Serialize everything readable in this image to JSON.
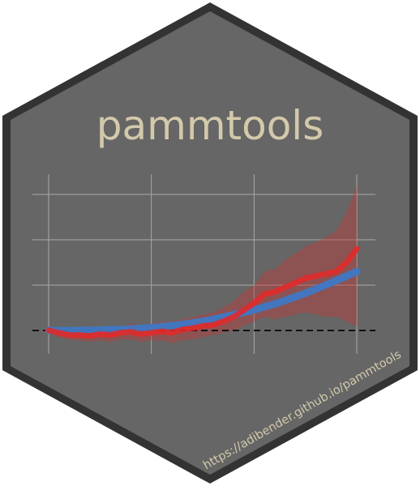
{
  "title": "pammtools",
  "url": "https://adibender.github.io/pammtools",
  "colors": {
    "page_background": "#ffffff",
    "hex_border": "#333333",
    "hex_fill": "#666666",
    "title": "#d3c9ab",
    "url": "#d3c9ab",
    "grid": "#a9a9a9",
    "reference_line": "#111111",
    "ribbon_red": "#cc3333",
    "line_red": "#e02a2a",
    "line_blue": "#3f78c4"
  },
  "chart_data": {
    "type": "line",
    "title": "",
    "xlabel": "",
    "ylabel": "",
    "xlim": [
      0,
      3
    ],
    "ylim": [
      -0.5,
      3
    ],
    "grid": true,
    "reference_line": {
      "y": 0,
      "style": "dashed"
    },
    "series": [
      {
        "x": [
          0,
          0.1,
          0.2,
          0.3,
          0.4,
          0.5,
          0.6,
          0.7,
          0.8,
          0.9,
          1.0,
          1.1,
          1.2,
          1.3,
          1.4,
          1.5,
          1.6,
          1.7,
          1.8,
          1.9,
          2.0,
          2.1,
          2.2,
          2.3,
          2.4,
          2.5,
          2.6,
          2.7,
          2.8,
          2.9,
          3.0
        ],
        "values": [
          0,
          -0.05,
          -0.1,
          -0.1,
          -0.12,
          -0.08,
          -0.1,
          -0.05,
          -0.03,
          -0.08,
          -0.05,
          -0.02,
          -0.05,
          0.02,
          0.05,
          0.1,
          0.12,
          0.2,
          0.3,
          0.45,
          0.6,
          0.8,
          0.85,
          0.95,
          1.05,
          1.15,
          1.2,
          1.25,
          1.3,
          1.5,
          1.8
        ],
        "ribbon_lower": [
          -0.05,
          -0.15,
          -0.2,
          -0.22,
          -0.25,
          -0.22,
          -0.25,
          -0.2,
          -0.2,
          -0.25,
          -0.22,
          -0.22,
          -0.28,
          -0.22,
          -0.2,
          -0.15,
          -0.1,
          -0.05,
          0.0,
          0.1,
          0.2,
          0.3,
          0.25,
          0.3,
          0.35,
          0.4,
          0.35,
          0.3,
          0.3,
          0.2,
          0.1
        ],
        "ribbon_upper": [
          0.05,
          0.05,
          0.0,
          0.02,
          0.0,
          0.05,
          0.05,
          0.1,
          0.15,
          0.12,
          0.15,
          0.2,
          0.2,
          0.25,
          0.3,
          0.35,
          0.4,
          0.5,
          0.65,
          0.85,
          1.0,
          1.3,
          1.35,
          1.55,
          1.7,
          1.85,
          1.95,
          2.05,
          2.2,
          2.6,
          3.2
        ]
      },
      {
        "x": [
          0,
          0.25,
          0.5,
          0.75,
          1.0,
          1.25,
          1.5,
          1.75,
          2.0,
          2.25,
          2.5,
          2.75,
          3.0
        ],
        "values": [
          0,
          0.0,
          0.01,
          0.03,
          0.06,
          0.12,
          0.2,
          0.32,
          0.45,
          0.62,
          0.82,
          1.05,
          1.3
        ]
      }
    ]
  }
}
